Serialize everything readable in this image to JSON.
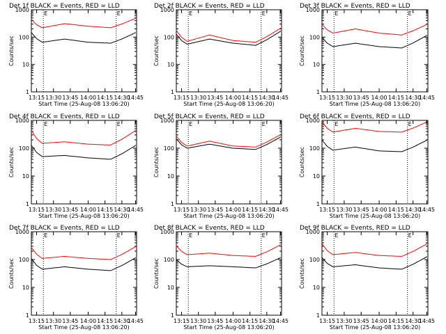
{
  "figure": {
    "xlabel": "Start Time (25-Aug-08 13:06:20)",
    "ylabel": "Counts/sec",
    "x_ticks": [
      "13:15",
      "13:30",
      "13:45",
      "14:00",
      "14:15",
      "14:30",
      "14:45"
    ],
    "y_ticks": [
      "1",
      "10",
      "100",
      "1000"
    ],
    "marker_label": "E",
    "colors": {
      "events": "#000000",
      "lld": "#ff0000",
      "axes": "#000000",
      "background": "#ffffff"
    },
    "x_scale": "linear (time)",
    "y_scale": "log",
    "grid": false
  },
  "chart_data": [
    {
      "type": "line",
      "title": "Det 1f BLACK = Events, RED = LLD",
      "x_range": [
        "13:06:20",
        "14:46:00"
      ],
      "ylim": [
        1,
        1000
      ],
      "markers": [
        "13:21",
        "14:25"
      ],
      "series": [
        {
          "name": "Events",
          "x": [
            "13:06",
            "13:20",
            "13:40",
            "14:00",
            "14:20",
            "14:46"
          ],
          "y": [
            150,
            65,
            85,
            65,
            60,
            150
          ]
        },
        {
          "name": "LLD",
          "x": [
            "13:06",
            "13:20",
            "13:40",
            "14:00",
            "14:20",
            "14:46"
          ],
          "y": [
            450,
            220,
            310,
            250,
            220,
            500
          ]
        }
      ]
    },
    {
      "type": "line",
      "title": "Det 2f BLACK = Events, RED = LLD",
      "x_range": [
        "13:06:20",
        "14:46:00"
      ],
      "ylim": [
        1,
        1000
      ],
      "markers": [
        "13:21",
        "14:25"
      ],
      "series": [
        {
          "name": "Events",
          "x": [
            "13:06",
            "13:20",
            "13:40",
            "14:00",
            "14:20",
            "14:46"
          ],
          "y": [
            130,
            55,
            85,
            60,
            50,
            170
          ]
        },
        {
          "name": "LLD",
          "x": [
            "13:06",
            "13:20",
            "13:40",
            "14:00",
            "14:20",
            "14:46"
          ],
          "y": [
            180,
            70,
            120,
            75,
            65,
            220
          ]
        }
      ]
    },
    {
      "type": "line",
      "title": "Det 3f BLACK = Events, RED = LLD",
      "x_range": [
        "13:06:20",
        "14:46:00"
      ],
      "ylim": [
        1,
        1000
      ],
      "markers": [
        "13:21",
        "14:25"
      ],
      "series": [
        {
          "name": "Events",
          "x": [
            "13:06",
            "13:20",
            "13:40",
            "14:00",
            "14:20",
            "14:46"
          ],
          "y": [
            100,
            45,
            60,
            45,
            40,
            120
          ]
        },
        {
          "name": "LLD",
          "x": [
            "13:06",
            "13:20",
            "13:40",
            "14:00",
            "14:20",
            "14:46"
          ],
          "y": [
            300,
            140,
            200,
            140,
            120,
            300
          ]
        }
      ]
    },
    {
      "type": "line",
      "title": "Det 4f BLACK = Events, RED = LLD",
      "x_range": [
        "13:06:20",
        "14:46:00"
      ],
      "ylim": [
        1,
        1000
      ],
      "markers": [
        "13:21",
        "14:25"
      ],
      "series": [
        {
          "name": "Events",
          "x": [
            "13:06",
            "13:20",
            "13:40",
            "14:00",
            "14:20",
            "14:46"
          ],
          "y": [
            130,
            50,
            55,
            45,
            40,
            130
          ]
        },
        {
          "name": "LLD",
          "x": [
            "13:06",
            "13:20",
            "13:40",
            "14:00",
            "14:20",
            "14:46"
          ],
          "y": [
            450,
            150,
            170,
            140,
            130,
            450
          ]
        }
      ]
    },
    {
      "type": "line",
      "title": "Det 5f BLACK = Events, RED = LLD",
      "x_range": [
        "13:06:20",
        "14:46:00"
      ],
      "ylim": [
        1,
        1000
      ],
      "markers": [
        "13:21",
        "14:25"
      ],
      "series": [
        {
          "name": "Events",
          "x": [
            "13:06",
            "13:20",
            "13:40",
            "14:00",
            "14:20",
            "14:46"
          ],
          "y": [
            220,
            100,
            140,
            100,
            90,
            260
          ]
        },
        {
          "name": "LLD",
          "x": [
            "13:06",
            "13:20",
            "13:40",
            "14:00",
            "14:20",
            "14:46"
          ],
          "y": [
            280,
            120,
            180,
            120,
            110,
            320
          ]
        }
      ]
    },
    {
      "type": "line",
      "title": "Det 6f BLACK = Events, RED = LLD",
      "x_range": [
        "13:06:20",
        "14:46:00"
      ],
      "ylim": [
        1,
        1000
      ],
      "markers": [
        "13:21",
        "14:25"
      ],
      "series": [
        {
          "name": "Events",
          "x": [
            "13:06",
            "13:20",
            "13:40",
            "14:00",
            "14:20",
            "14:46"
          ],
          "y": [
            200,
            85,
            110,
            80,
            75,
            200
          ]
        },
        {
          "name": "LLD",
          "x": [
            "13:06",
            "13:20",
            "13:40",
            "14:00",
            "14:20",
            "14:46"
          ],
          "y": [
            900,
            380,
            520,
            400,
            380,
            900
          ]
        }
      ]
    },
    {
      "type": "line",
      "title": "Det 7f BLACK = Events, RED = LLD",
      "x_range": [
        "13:06:20",
        "14:46:00"
      ],
      "ylim": [
        1,
        1000
      ],
      "markers": [
        "13:21",
        "14:25"
      ],
      "series": [
        {
          "name": "Events",
          "x": [
            "13:06",
            "13:20",
            "13:40",
            "14:00",
            "14:20",
            "14:46"
          ],
          "y": [
            110,
            45,
            55,
            45,
            40,
            120
          ]
        },
        {
          "name": "LLD",
          "x": [
            "13:06",
            "13:20",
            "13:40",
            "14:00",
            "14:20",
            "14:46"
          ],
          "y": [
            280,
            110,
            130,
            110,
            100,
            300
          ]
        }
      ]
    },
    {
      "type": "line",
      "title": "Det 8f BLACK = Events, RED = LLD",
      "x_range": [
        "13:06:20",
        "14:46:00"
      ],
      "ylim": [
        1,
        1000
      ],
      "markers": [
        "13:21",
        "14:25"
      ],
      "series": [
        {
          "name": "Events",
          "x": [
            "13:06",
            "13:20",
            "13:40",
            "14:00",
            "14:20",
            "14:46"
          ],
          "y": [
            100,
            55,
            60,
            55,
            50,
            120
          ]
        },
        {
          "name": "LLD",
          "x": [
            "13:06",
            "13:20",
            "13:40",
            "14:00",
            "14:20",
            "14:46"
          ],
          "y": [
            320,
            150,
            170,
            140,
            130,
            350
          ]
        }
      ]
    },
    {
      "type": "line",
      "title": "Det 9f BLACK = Events, RED = LLD",
      "x_range": [
        "13:06:20",
        "14:46:00"
      ],
      "ylim": [
        1,
        1000
      ],
      "markers": [
        "13:21",
        "14:25"
      ],
      "series": [
        {
          "name": "Events",
          "x": [
            "13:06",
            "13:20",
            "13:40",
            "14:00",
            "14:20",
            "14:46"
          ],
          "y": [
            120,
            55,
            65,
            50,
            45,
            130
          ]
        },
        {
          "name": "LLD",
          "x": [
            "13:06",
            "13:20",
            "13:40",
            "14:00",
            "14:20",
            "14:46"
          ],
          "y": [
            380,
            150,
            180,
            140,
            130,
            380
          ]
        }
      ]
    }
  ]
}
